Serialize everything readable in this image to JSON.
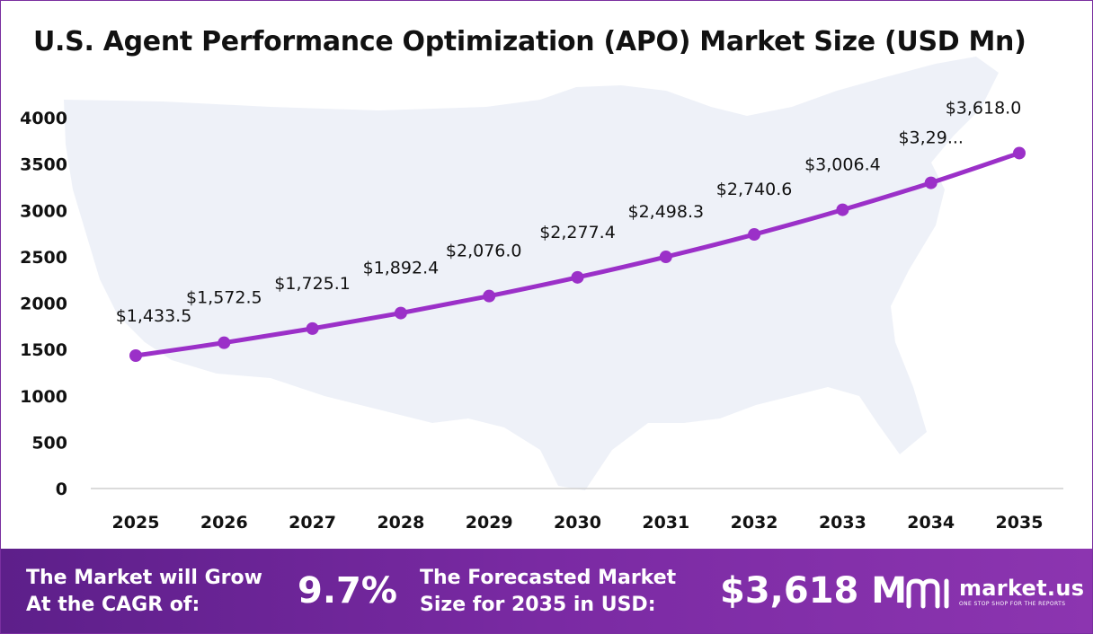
{
  "chart_data": {
    "type": "line",
    "title": "U.S. Agent Performance Optimization (APO) Market Size (USD Mn)",
    "xlabel": "",
    "ylabel": "",
    "categories": [
      "2025",
      "2026",
      "2027",
      "2028",
      "2029",
      "2030",
      "2031",
      "2032",
      "2033",
      "2034",
      "2035"
    ],
    "series": [
      {
        "values": [
          1433.5,
          1572.5,
          1725.1,
          1892.4,
          2076.0,
          2277.4,
          2498.3,
          2740.6,
          3006.4,
          3297.0,
          3618.0
        ]
      }
    ],
    "data_labels": [
      "$1,433.5",
      "$1,572.5",
      "$1,725.1",
      "$1,892.4",
      "$2,076.0",
      "$2,277.4",
      "$2,498.3",
      "$2,740.6",
      "$3,006.4",
      "$3,29...",
      "$3,618.0"
    ],
    "y_ticks": [
      "0",
      "500",
      "1000",
      "1500",
      "2000",
      "2500",
      "3000",
      "3500",
      "4000"
    ],
    "ylim": [
      0,
      4000
    ],
    "grid": false,
    "legend": "none",
    "line_color": "#9b30c8",
    "background_image": "usa-map-silhouette"
  },
  "footer": {
    "cagr_label_line1": "The Market will Grow",
    "cagr_label_line2": "At the CAGR of:",
    "cagr_value": "9.7%",
    "size_label_line1": "The Forecasted Market",
    "size_label_line2": "Size for 2035 in USD:",
    "size_value": "$3,618 M",
    "logo_name": "market.us",
    "logo_tagline": "ONE STOP SHOP FOR THE REPORTS",
    "background_color": "#6a2596"
  }
}
